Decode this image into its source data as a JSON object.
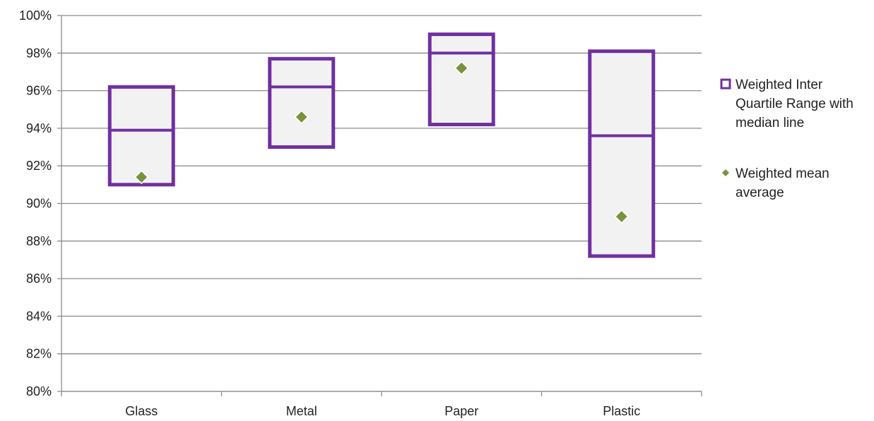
{
  "chart_data": {
    "type": "box",
    "categories": [
      "Glass",
      "Metal",
      "Paper",
      "Plastic"
    ],
    "y_ticks": [
      "80%",
      "82%",
      "84%",
      "86%",
      "88%",
      "90%",
      "92%",
      "94%",
      "96%",
      "98%",
      "100%"
    ],
    "ylim": [
      0.8,
      1.0
    ],
    "grid": true,
    "legend_position": "right",
    "series": [
      {
        "name_lines": [
          "Weighted Inter",
          "Quartile Range with",
          "median line"
        ],
        "type": "iqr-box",
        "q1": [
          0.91,
          0.93,
          0.942,
          0.872
        ],
        "median": [
          0.939,
          0.962,
          0.98,
          0.936
        ],
        "q3": [
          0.962,
          0.977,
          0.99,
          0.981
        ]
      },
      {
        "name_lines": [
          "Weighted mean",
          "average"
        ],
        "type": "mean-marker",
        "values": [
          0.914,
          0.946,
          0.972,
          0.893
        ]
      }
    ],
    "colors": {
      "box_stroke": "#7030a0",
      "box_fill": "#f2f2f2",
      "mean_marker": "#77933c",
      "grid": "#8c8c8c",
      "axis": "#8c8c8c"
    }
  }
}
